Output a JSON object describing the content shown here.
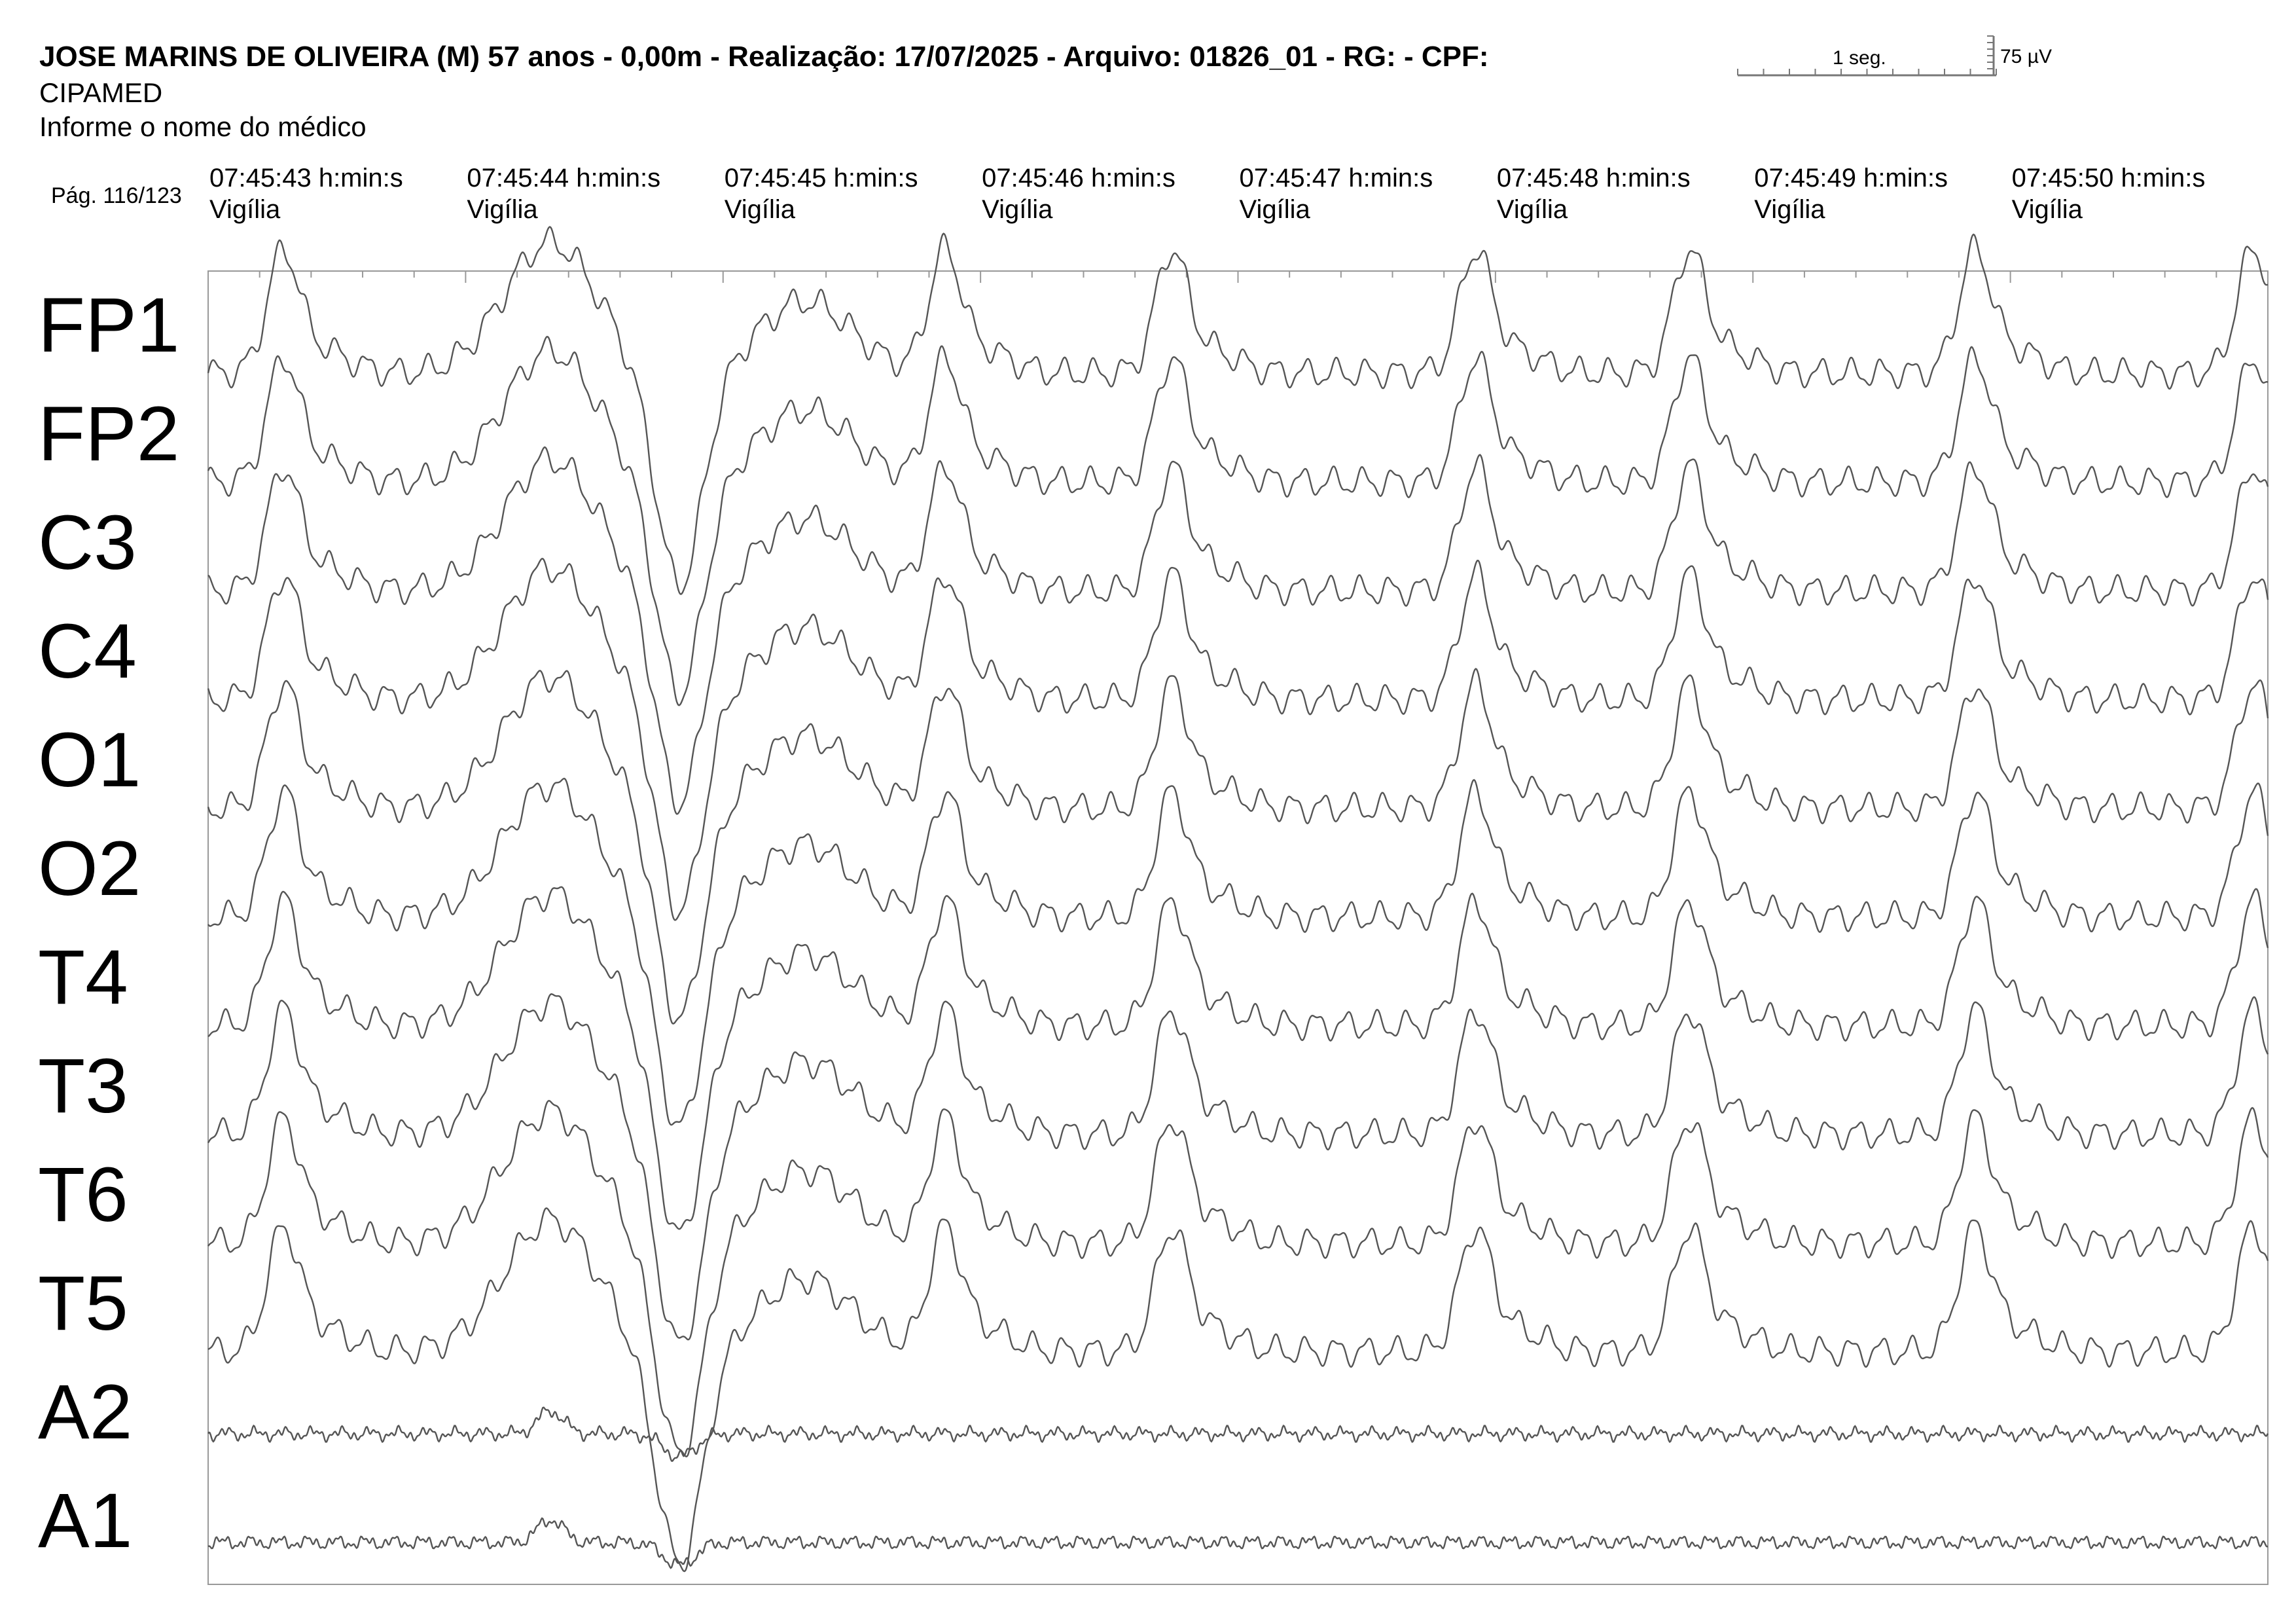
{
  "header": {
    "patient_line": "JOSE MARINS DE OLIVEIRA (M) 57 anos - 0,00m - Realização: 17/07/2025 - Arquivo: 01826_01 - RG:  - CPF:",
    "clinic": "CIPAMED",
    "doctor": "Informe o nome do médico",
    "page": "Pág. 116/123"
  },
  "scale": {
    "time_label": "1 seg.",
    "amplitude_label": "75 µV"
  },
  "chart_data": {
    "type": "line",
    "x_unit": "s",
    "seconds_shown": 8,
    "time_markers": [
      {
        "time": "07:45:43 h:min:s",
        "state": "Vigília"
      },
      {
        "time": "07:45:44 h:min:s",
        "state": "Vigília"
      },
      {
        "time": "07:45:45 h:min:s",
        "state": "Vigília"
      },
      {
        "time": "07:45:46 h:min:s",
        "state": "Vigília"
      },
      {
        "time": "07:45:47 h:min:s",
        "state": "Vigília"
      },
      {
        "time": "07:45:48 h:min:s",
        "state": "Vigília"
      },
      {
        "time": "07:45:49 h:min:s",
        "state": "Vigília"
      },
      {
        "time": "07:45:50 h:min:s",
        "state": "Vigília"
      }
    ],
    "channels": [
      "FP1",
      "FP2",
      "C3",
      "C4",
      "O1",
      "O2",
      "T4",
      "T3",
      "T6",
      "T5",
      "A2",
      "A1"
    ],
    "sharp_waves_at_s": [
      0.29,
      2.86,
      3.74,
      4.92,
      5.75,
      6.86,
      7.94
    ],
    "artifact": {
      "peak_at_s": 1.33,
      "trough_at_s": 1.83
    },
    "reference_channels": [
      "A2",
      "A1"
    ],
    "trace_color": "#555555"
  }
}
